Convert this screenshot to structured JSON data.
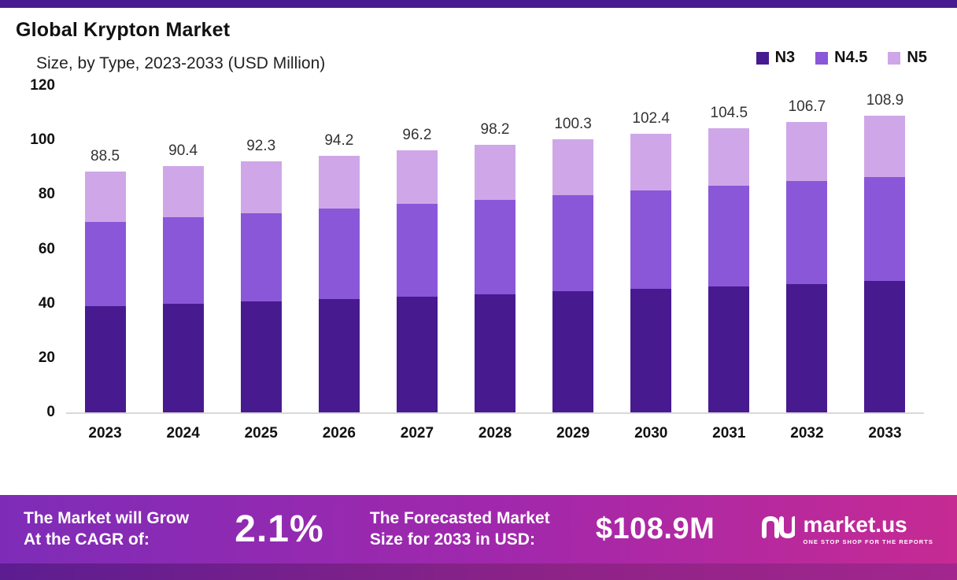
{
  "title": "Global Krypton Market",
  "subtitle": "Size, by Type, 2023-2033 (USD Million)",
  "legend": [
    {
      "label": "N3",
      "color": "#481a90"
    },
    {
      "label": "N4.5",
      "color": "#8a57d8"
    },
    {
      "label": "N5",
      "color": "#cfa7e8"
    }
  ],
  "chart_data": {
    "type": "bar",
    "stacked": true,
    "title": "Global Krypton Market Size, by Type, 2023-2033 (USD Million)",
    "xlabel": "",
    "ylabel": "",
    "categories": [
      "2023",
      "2024",
      "2025",
      "2026",
      "2027",
      "2028",
      "2029",
      "2030",
      "2031",
      "2032",
      "2033"
    ],
    "series": [
      {
        "name": "N3",
        "color": "#481a90",
        "values": [
          39.0,
          39.9,
          40.8,
          41.7,
          42.6,
          43.5,
          44.4,
          45.4,
          46.3,
          47.2,
          48.2
        ]
      },
      {
        "name": "N4.5",
        "color": "#8a57d8",
        "values": [
          31.0,
          31.7,
          32.4,
          33.1,
          33.9,
          34.6,
          35.4,
          36.1,
          36.9,
          37.7,
          38.4
        ]
      },
      {
        "name": "N5",
        "color": "#cfa7e8",
        "values": [
          18.5,
          18.8,
          19.1,
          19.4,
          19.7,
          20.1,
          20.5,
          20.9,
          21.3,
          21.8,
          22.3
        ]
      }
    ],
    "totals": [
      88.5,
      90.4,
      92.3,
      94.2,
      96.2,
      98.2,
      100.3,
      102.4,
      104.5,
      106.7,
      108.9
    ],
    "ylim": [
      0,
      120
    ],
    "yticks": [
      0,
      20,
      40,
      60,
      80,
      100,
      120
    ],
    "grid": false,
    "legend_position": "top-right"
  },
  "banner": {
    "cagr_label_line1": "The Market will Grow",
    "cagr_label_line2": "At the CAGR of:",
    "cagr_value": "2.1%",
    "forecast_label_line1": "The Forecasted Market",
    "forecast_label_line2": "Size for 2033 in USD:",
    "forecast_value": "$108.9M",
    "logo_text": "market.us",
    "logo_tagline": "ONE STOP SHOP FOR THE REPORTS"
  }
}
